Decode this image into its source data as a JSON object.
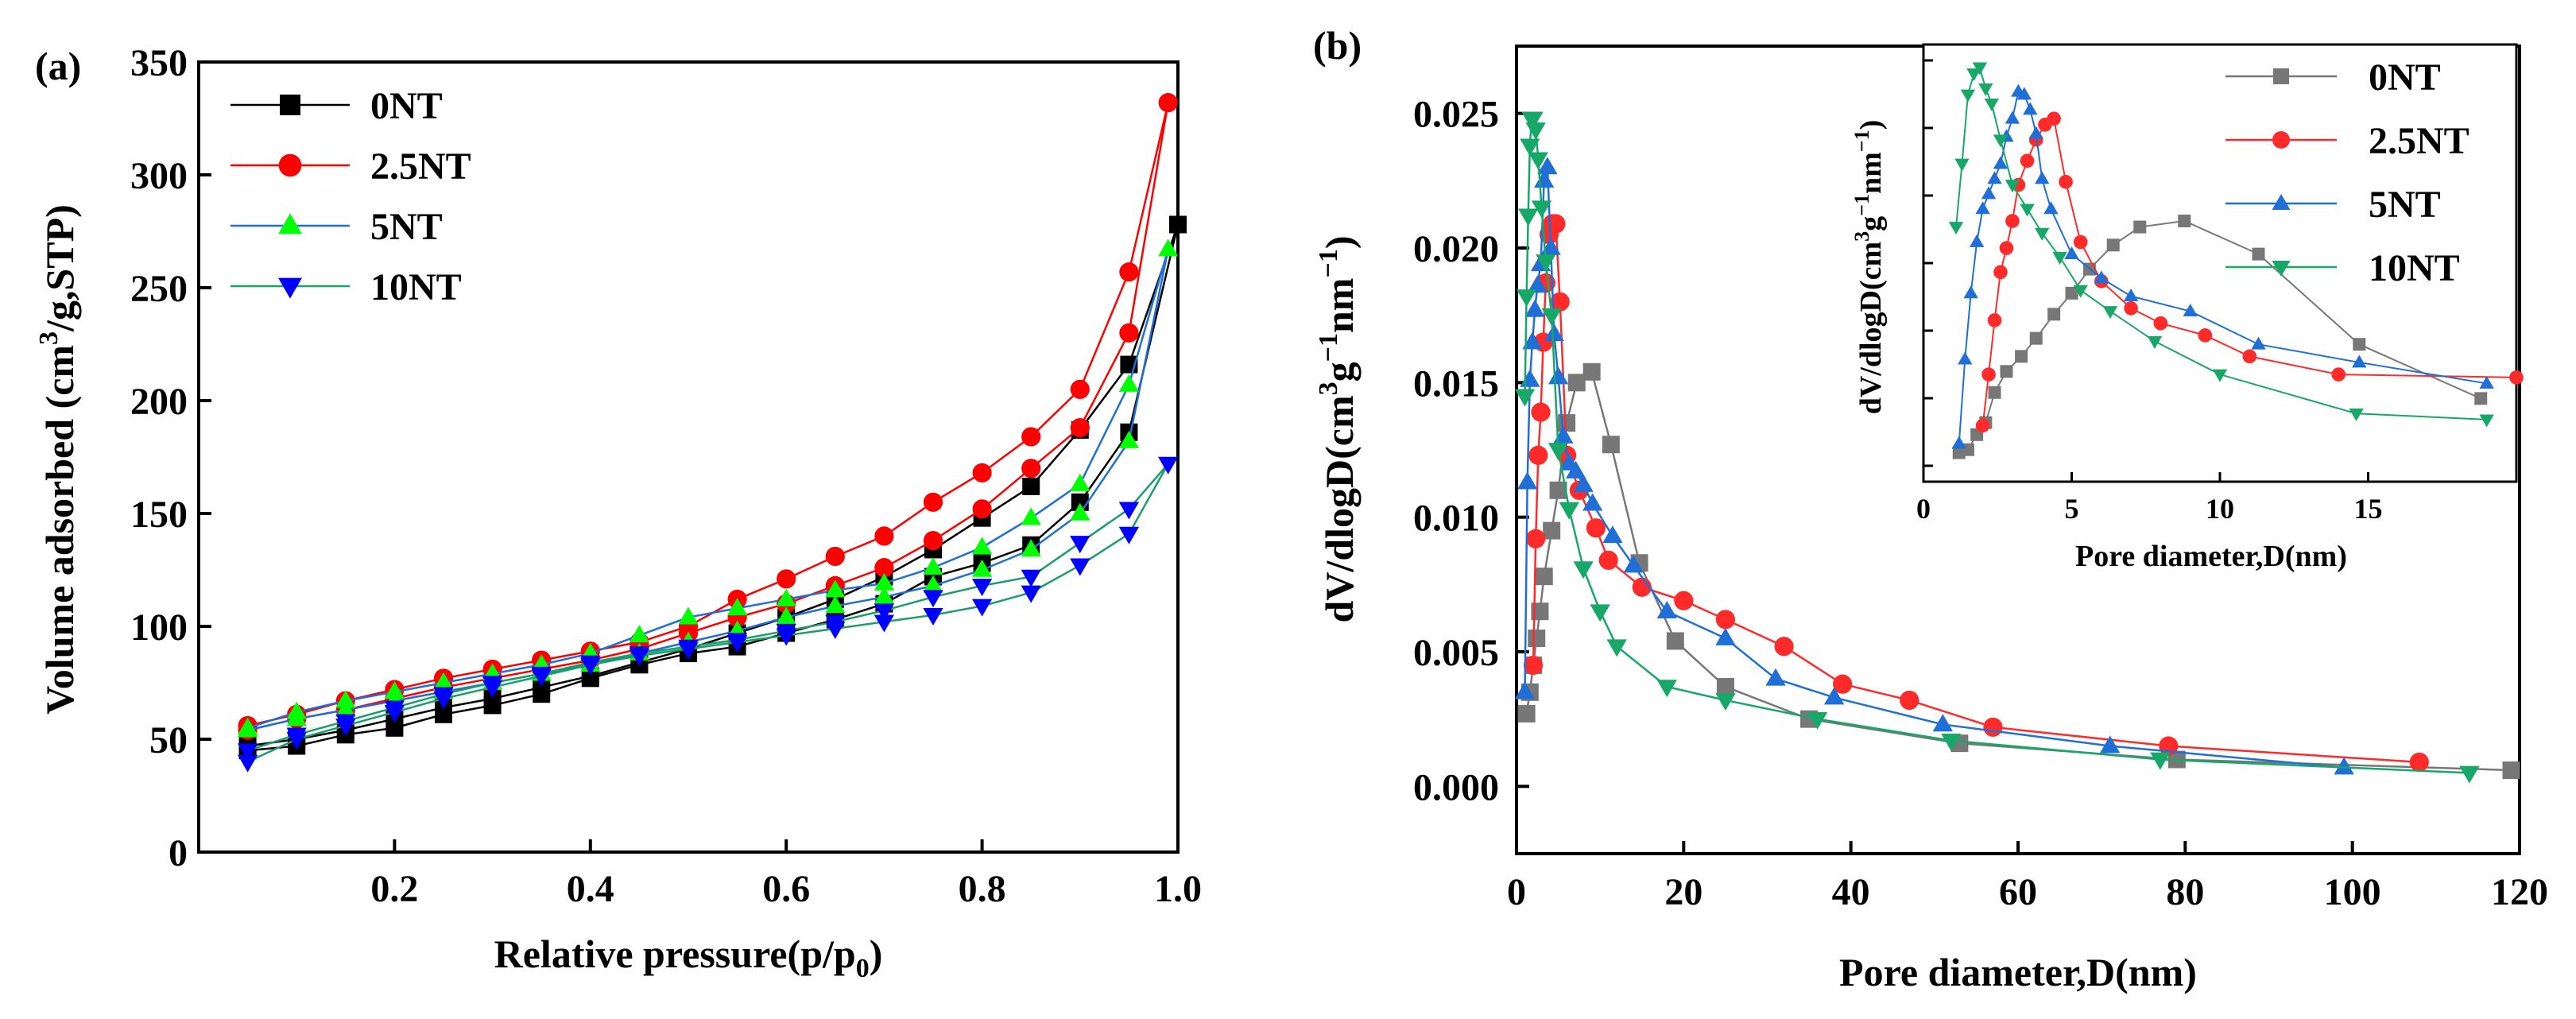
{
  "chart_data": [
    {
      "id": "a",
      "panel_label": "(a)",
      "type": "line",
      "xlabel": "Relative pressure(p/p0)",
      "xlabel_main": "Relative pressure",
      "xlabel_sub": "(p/p",
      "xlabel_sub0": "0",
      "xlabel_end": ")",
      "ylabel": "Volume adsorbed (cm3/g,STP)",
      "ylabel_main": "Volume adsorbed (cm",
      "ylabel_sup": "3",
      "ylabel_end": "/g,STP)",
      "xlim": [
        0.0,
        1.0
      ],
      "ylim": [
        0,
        350
      ],
      "xticks": [
        0.2,
        0.4,
        0.6,
        0.8,
        1.0
      ],
      "xtick_labels": [
        "0.2",
        "0.4",
        "0.6",
        "0.8",
        "1.0"
      ],
      "yticks": [
        0,
        50,
        100,
        150,
        200,
        250,
        300,
        350
      ],
      "ytick_labels": [
        "0",
        "50",
        "100",
        "150",
        "200",
        "250",
        "300",
        "350"
      ],
      "legend_position": "top-left",
      "series": [
        {
          "name": "0NT",
          "color": "#000000",
          "marker": "square",
          "x": [
            0.05,
            0.1,
            0.15,
            0.2,
            0.25,
            0.3,
            0.35,
            0.4,
            0.45,
            0.5,
            0.55,
            0.6,
            0.65,
            0.7,
            0.75,
            0.8,
            0.85,
            0.9,
            0.95,
            1.0,
            0.95,
            0.9,
            0.85,
            0.8,
            0.75,
            0.7,
            0.65,
            0.6,
            0.55,
            0.5,
            0.45,
            0.4,
            0.35,
            0.3,
            0.25,
            0.2,
            0.15,
            0.1,
            0.05
          ],
          "y": [
            47,
            50,
            54,
            59,
            64,
            68,
            73,
            78,
            84,
            90,
            97,
            104,
            112,
            122,
            134,
            148,
            162,
            187,
            216,
            278,
            186,
            155,
            136,
            128,
            122,
            110,
            103,
            97,
            91,
            88,
            83,
            77,
            70,
            65,
            61,
            55,
            52,
            47,
            45
          ]
        },
        {
          "name": "2.5NT",
          "color": "#ff0000",
          "marker": "circle",
          "x": [
            0.05,
            0.1,
            0.15,
            0.2,
            0.25,
            0.3,
            0.35,
            0.4,
            0.45,
            0.5,
            0.55,
            0.6,
            0.65,
            0.7,
            0.75,
            0.8,
            0.85,
            0.9,
            0.95,
            0.99,
            0.95,
            0.9,
            0.85,
            0.8,
            0.75,
            0.7,
            0.65,
            0.6,
            0.55,
            0.5,
            0.45,
            0.4,
            0.35,
            0.3,
            0.25,
            0.2,
            0.15,
            0.1,
            0.05
          ],
          "y": [
            56,
            61,
            67,
            72,
            77,
            81,
            85,
            89,
            93,
            100,
            112,
            121,
            131,
            140,
            155,
            168,
            184,
            205,
            257,
            332,
            230,
            188,
            170,
            152,
            138,
            126,
            118,
            110,
            104,
            97,
            90,
            85,
            81,
            77,
            73,
            68,
            63,
            59,
            54
          ]
        },
        {
          "name": "5NT",
          "color": "#00ff00",
          "linecolor": "#1f6fd6",
          "marker": "triangle-up",
          "x": [
            0.05,
            0.1,
            0.15,
            0.2,
            0.25,
            0.3,
            0.35,
            0.4,
            0.45,
            0.5,
            0.55,
            0.6,
            0.65,
            0.7,
            0.75,
            0.8,
            0.85,
            0.9,
            0.95,
            0.99,
            0.95,
            0.9,
            0.85,
            0.8,
            0.75,
            0.7,
            0.65,
            0.6,
            0.55,
            0.5,
            0.45,
            0.4,
            0.35,
            0.3,
            0.25,
            0.2,
            0.15,
            0.1,
            0.05
          ],
          "y": [
            55,
            62,
            67,
            71,
            75,
            79,
            83,
            88,
            96,
            104,
            108,
            112,
            116,
            119,
            126,
            135,
            148,
            163,
            207,
            267,
            182,
            150,
            134,
            125,
            118,
            113,
            109,
            104,
            98,
            93,
            88,
            83,
            79,
            75,
            71,
            67,
            63,
            59,
            54
          ]
        },
        {
          "name": "10NT",
          "color": "#0000ff",
          "linecolor": "#1a9e6a",
          "marker": "triangle-down",
          "x": [
            0.05,
            0.1,
            0.15,
            0.2,
            0.25,
            0.3,
            0.35,
            0.4,
            0.45,
            0.5,
            0.55,
            0.6,
            0.65,
            0.7,
            0.75,
            0.8,
            0.85,
            0.9,
            0.95,
            0.99,
            0.95,
            0.9,
            0.85,
            0.8,
            0.75,
            0.7,
            0.65,
            0.6,
            0.55,
            0.5,
            0.45,
            0.4,
            0.35,
            0.3,
            0.25,
            0.2,
            0.15,
            0.1,
            0.05
          ],
          "y": [
            40,
            50,
            56,
            62,
            68,
            73,
            78,
            83,
            87,
            90,
            93,
            96,
            99,
            102,
            105,
            109,
            115,
            127,
            141,
            172,
            152,
            137,
            122,
            118,
            113,
            107,
            102,
            98,
            94,
            91,
            88,
            84,
            79,
            75,
            70,
            64,
            58,
            52,
            45
          ]
        }
      ]
    },
    {
      "id": "b",
      "panel_label": "(b)",
      "type": "line",
      "xlabel": "Pore diameter,D(nm)",
      "ylabel": "dV/dlogD(cm3g-1nm-1)",
      "ylabel_main": "dV/dlogD(cm",
      "ylabel_sup1": "3",
      "ylabel_mid": "g",
      "ylabel_sup2": "−1",
      "ylabel_mid2": "nm",
      "ylabel_sup3": "−1",
      "ylabel_end": ")",
      "xlim": [
        0,
        120
      ],
      "ylim": [
        -0.0025,
        0.0275
      ],
      "xticks": [
        0,
        20,
        40,
        60,
        80,
        100,
        120
      ],
      "xtick_labels": [
        "0",
        "20",
        "40",
        "60",
        "80",
        "100",
        "120"
      ],
      "yticks": [
        0.0,
        0.005,
        0.01,
        0.015,
        0.02,
        0.025
      ],
      "ytick_labels": [
        "0.000",
        "0.005",
        "0.010",
        "0.015",
        "0.020",
        "0.025"
      ],
      "series": [
        {
          "name": "0NT",
          "color": "#777777",
          "marker": "square",
          "x": [
            1.2,
            1.6,
            2.0,
            2.4,
            2.8,
            3.3,
            4.2,
            5.0,
            6.0,
            7.2,
            9.0,
            11.3,
            14.7,
            19.0,
            25.0,
            35.0,
            53.0,
            79.0,
            119.0
          ],
          "y": [
            0.0027,
            0.0035,
            0.0045,
            0.0055,
            0.0065,
            0.0078,
            0.0095,
            0.011,
            0.0135,
            0.015,
            0.0154,
            0.0127,
            0.0083,
            0.0054,
            0.0037,
            0.0025,
            0.0016,
            0.001,
            0.0006
          ]
        },
        {
          "name": "2.5NT",
          "color": "#ff2a2a",
          "marker": "circle",
          "x": [
            2.0,
            2.3,
            2.6,
            2.9,
            3.2,
            3.5,
            3.9,
            4.3,
            4.7,
            5.2,
            6.0,
            7.5,
            9.5,
            11.0,
            15.0,
            20.0,
            25.0,
            32.0,
            39.0,
            47.0,
            57.0,
            78.0,
            108.0
          ],
          "y": [
            0.0045,
            0.0092,
            0.0123,
            0.0139,
            0.0165,
            0.0187,
            0.0205,
            0.0209,
            0.0209,
            0.018,
            0.0123,
            0.011,
            0.0096,
            0.0084,
            0.0074,
            0.0069,
            0.0062,
            0.0052,
            0.0038,
            0.0032,
            0.0022,
            0.0015,
            0.0009
          ]
        },
        {
          "name": "5NT",
          "color": "#1f6fd6",
          "marker": "triangle-up",
          "x": [
            1.0,
            1.3,
            1.6,
            1.9,
            2.2,
            2.5,
            2.9,
            3.3,
            3.7,
            4.1,
            4.5,
            5.0,
            5.6,
            6.3,
            7.1,
            8.0,
            9.1,
            11.5,
            14.0,
            18.0,
            25.0,
            31.0,
            38.0,
            51.0,
            71.0,
            99.0
          ],
          "y": [
            0.0035,
            0.0113,
            0.0151,
            0.0165,
            0.0177,
            0.0186,
            0.0194,
            0.0225,
            0.023,
            0.02,
            0.0168,
            0.0152,
            0.013,
            0.012,
            0.0117,
            0.0112,
            0.0105,
            0.0093,
            0.0082,
            0.0065,
            0.0055,
            0.004,
            0.0033,
            0.0023,
            0.0015,
            0.0007
          ]
        },
        {
          "name": "10NT",
          "color": "#17a869",
          "marker": "triangle-down",
          "x": [
            1.0,
            1.2,
            1.4,
            1.6,
            1.8,
            2.0,
            2.3,
            2.6,
            3.0,
            3.5,
            4.2,
            5.0,
            6.3,
            8.0,
            10.0,
            12.0,
            18.0,
            25.0,
            36.0,
            52.0,
            77.0,
            114.0
          ],
          "y": [
            0.0145,
            0.0182,
            0.0212,
            0.0238,
            0.0248,
            0.0248,
            0.0244,
            0.0233,
            0.0215,
            0.0195,
            0.0175,
            0.0125,
            0.0103,
            0.0081,
            0.0065,
            0.0052,
            0.0037,
            0.0032,
            0.0025,
            0.0017,
            0.001,
            0.0005
          ]
        }
      ],
      "inset": {
        "xlabel": "Pore diameter,D(nm)",
        "ylabel": "dV/dlogD(cm3g-1nm-1)",
        "ylabel_main": "dV/dlogD(cm",
        "ylabel_sup1": "3",
        "ylabel_mid": "g",
        "ylabel_sup2": "−1",
        "ylabel_mid2": "nm",
        "ylabel_sup3": "−1",
        "ylabel_end": ")",
        "xlim": [
          0,
          20
        ],
        "xticks": [
          0,
          5,
          10,
          15
        ],
        "xtick_labels": [
          "0",
          "5",
          "10",
          "15"
        ],
        "legend_position": "top-right",
        "series": [
          {
            "name": "0NT",
            "color": "#777777",
            "marker": "square",
            "x": [
              1.2,
              1.5,
              1.8,
              2.1,
              2.4,
              2.8,
              3.3,
              3.8,
              4.4,
              5.0,
              5.6,
              6.4,
              7.3,
              8.8,
              11.3,
              14.7,
              18.8
            ],
            "y": [
              0.0027,
              0.0028,
              0.0033,
              0.0037,
              0.0047,
              0.0054,
              0.0059,
              0.0065,
              0.0073,
              0.008,
              0.0088,
              0.0096,
              0.0102,
              0.0104,
              0.0093,
              0.0063,
              0.0045
            ]
          },
          {
            "name": "2.5NT",
            "color": "#ff2a2a",
            "marker": "circle",
            "x": [
              2.0,
              2.2,
              2.4,
              2.6,
              2.8,
              3.0,
              3.2,
              3.5,
              3.8,
              4.1,
              4.4,
              4.8,
              5.3,
              6.0,
              7.0,
              8.0,
              9.5,
              11.0,
              14.0,
              20.0
            ],
            "y": [
              0.0036,
              0.0053,
              0.0071,
              0.0087,
              0.0095,
              0.0104,
              0.0116,
              0.0124,
              0.0131,
              0.0136,
              0.0138,
              0.0117,
              0.0097,
              0.0084,
              0.0075,
              0.007,
              0.0066,
              0.0059,
              0.0053,
              0.0052
            ]
          },
          {
            "name": "5NT",
            "color": "#1f6fd6",
            "marker": "triangle-up",
            "x": [
              1.2,
              1.4,
              1.6,
              1.8,
              2.0,
              2.2,
              2.4,
              2.6,
              2.8,
              3.0,
              3.2,
              3.4,
              3.6,
              3.8,
              4.0,
              4.3,
              5.0,
              6.0,
              7.0,
              9.0,
              11.3,
              14.7,
              19.0
            ],
            "y": [
              0.003,
              0.0058,
              0.008,
              0.0097,
              0.0108,
              0.0113,
              0.0118,
              0.0123,
              0.0132,
              0.0138,
              0.0147,
              0.0146,
              0.0141,
              0.0133,
              0.0118,
              0.0108,
              0.0093,
              0.0085,
              0.0079,
              0.0074,
              0.0063,
              0.0057,
              0.005
            ]
          },
          {
            "name": "10NT",
            "color": "#17a869",
            "marker": "triangle-down",
            "x": [
              1.1,
              1.3,
              1.5,
              1.7,
              1.9,
              2.1,
              2.3,
              2.6,
              3.0,
              3.5,
              4.0,
              4.6,
              5.3,
              6.3,
              7.8,
              10.0,
              14.6,
              19.0
            ],
            "y": [
              0.0102,
              0.0123,
              0.0146,
              0.0153,
              0.0155,
              0.0148,
              0.0143,
              0.0131,
              0.0116,
              0.0108,
              0.01,
              0.0092,
              0.0081,
              0.0074,
              0.0064,
              0.0053,
              0.004,
              0.0038
            ]
          }
        ]
      }
    }
  ]
}
